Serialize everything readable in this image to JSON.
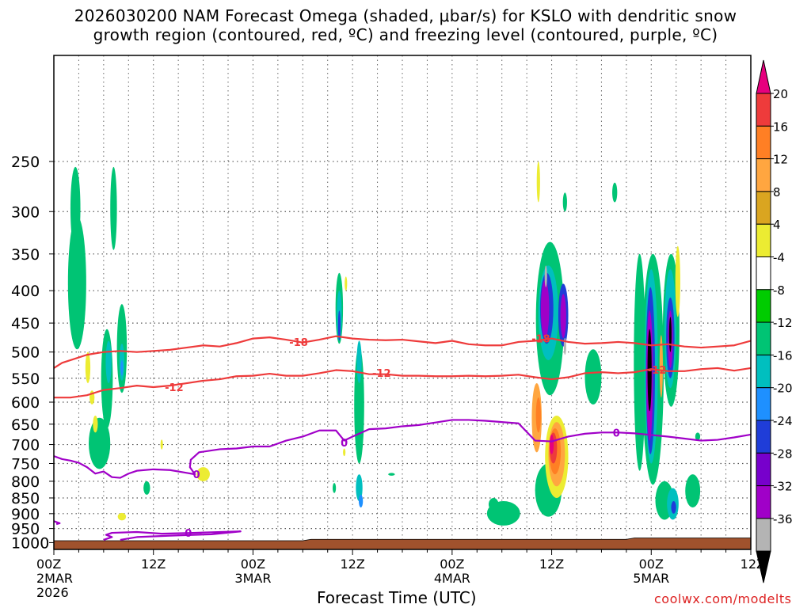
{
  "title_line1": "2026030200 NAM Forecast Omega (shaded, μbar/s) for KSLO with dendritic snow",
  "title_line2": "growth region (contoured, red, ºC) and freezing level (contoured, purple, ºC)",
  "x_axis_title": "Forecast Time (UTC)",
  "credit": "coolwx.com/modelts",
  "chart_data": {
    "type": "heatmap",
    "x_unit": "hours from 2026030200",
    "xlim": [
      0,
      84
    ],
    "y_unit": "hPa",
    "ylim": [
      1025,
      170
    ],
    "x_ticks": [
      {
        "hour": 0,
        "label": "00Z",
        "sub1": "2MAR",
        "sub2": "2026"
      },
      {
        "hour": 12,
        "label": "12Z",
        "sub1": "",
        "sub2": ""
      },
      {
        "hour": 24,
        "label": "00Z",
        "sub1": "3MAR",
        "sub2": ""
      },
      {
        "hour": 36,
        "label": "12Z",
        "sub1": "",
        "sub2": ""
      },
      {
        "hour": 48,
        "label": "00Z",
        "sub1": "4MAR",
        "sub2": ""
      },
      {
        "hour": 60,
        "label": "12Z",
        "sub1": "",
        "sub2": ""
      },
      {
        "hour": 72,
        "label": "00Z",
        "sub1": "5MAR",
        "sub2": ""
      },
      {
        "hour": 84,
        "label": "12Z",
        "sub1": "",
        "sub2": ""
      }
    ],
    "y_ticks": [
      250,
      300,
      350,
      400,
      450,
      500,
      550,
      600,
      650,
      700,
      750,
      800,
      850,
      900,
      950,
      1000
    ],
    "colorbar": {
      "labels": [
        "20",
        "16",
        "12",
        "8",
        "4",
        "-4",
        "-8",
        "-12",
        "-16",
        "-20",
        "-24",
        "-28",
        "-32",
        "-36"
      ],
      "colors": [
        "#e6007e",
        "#ee3b3b",
        "#ff7f24",
        "#ffa640",
        "#daa520",
        "#ecec32",
        "#ffffff",
        "#00cc00",
        "#00c474",
        "#00bfbf",
        "#1e90ff",
        "#1f3dd8",
        "#7700cc",
        "#a000c8",
        "#b4b4b4",
        "#000000"
      ]
    },
    "omega_shading": [
      {
        "x": 2.8,
        "p": 400,
        "w": 1.1,
        "h": 190,
        "v": -8
      },
      {
        "x": 2.6,
        "p": 300,
        "w": 0.6,
        "h": 90,
        "v": -8
      },
      {
        "x": 5.5,
        "p": 700,
        "w": 1.3,
        "h": 130,
        "v": -8
      },
      {
        "x": 6.4,
        "p": 560,
        "w": 0.7,
        "h": 200,
        "v": -8
      },
      {
        "x": 6.6,
        "p": 520,
        "w": 0.35,
        "h": 80,
        "v": -12
      },
      {
        "x": 7.2,
        "p": 300,
        "w": 0.4,
        "h": 90,
        "v": -8
      },
      {
        "x": 8.2,
        "p": 500,
        "w": 0.6,
        "h": 160,
        "v": -8
      },
      {
        "x": 8.2,
        "p": 520,
        "w": 0.3,
        "h": 70,
        "v": -12
      },
      {
        "x": 8.2,
        "p": 530,
        "w": 0.15,
        "h": 30,
        "v": -16
      },
      {
        "x": 4.1,
        "p": 530,
        "w": 0.3,
        "h": 60,
        "v": 4
      },
      {
        "x": 4.6,
        "p": 590,
        "w": 0.3,
        "h": 30,
        "v": 4
      },
      {
        "x": 5.0,
        "p": 650,
        "w": 0.3,
        "h": 40,
        "v": 4
      },
      {
        "x": 8.2,
        "p": 910,
        "w": 0.5,
        "h": 25,
        "v": 4
      },
      {
        "x": 11.2,
        "p": 820,
        "w": 0.4,
        "h": 40,
        "v": -8
      },
      {
        "x": 18.0,
        "p": 780,
        "w": 0.8,
        "h": 40,
        "v": 4
      },
      {
        "x": 13.0,
        "p": 700,
        "w": 0.15,
        "h": 25,
        "v": 4
      },
      {
        "x": 34.4,
        "p": 430,
        "w": 0.45,
        "h": 110,
        "v": -8
      },
      {
        "x": 34.4,
        "p": 440,
        "w": 0.3,
        "h": 80,
        "v": -12
      },
      {
        "x": 34.4,
        "p": 455,
        "w": 0.15,
        "h": 50,
        "v": -20
      },
      {
        "x": 36.8,
        "p": 620,
        "w": 0.6,
        "h": 260,
        "v": -8
      },
      {
        "x": 36.8,
        "p": 520,
        "w": 0.3,
        "h": 80,
        "v": -12
      },
      {
        "x": 36.8,
        "p": 820,
        "w": 0.4,
        "h": 80,
        "v": -12
      },
      {
        "x": 37.0,
        "p": 860,
        "w": 0.25,
        "h": 40,
        "v": -16
      },
      {
        "x": 33.8,
        "p": 820,
        "w": 0.2,
        "h": 30,
        "v": -8
      },
      {
        "x": 35.2,
        "p": 390,
        "w": 0.15,
        "h": 20,
        "v": 4
      },
      {
        "x": 35.0,
        "p": 720,
        "w": 0.15,
        "h": 20,
        "v": 4
      },
      {
        "x": 40.7,
        "p": 780,
        "w": 0.4,
        "h": 8,
        "v": -8
      },
      {
        "x": 54.2,
        "p": 900,
        "w": 2.0,
        "h": 80,
        "v": -8
      },
      {
        "x": 53.0,
        "p": 870,
        "w": 0.6,
        "h": 40,
        "v": -8
      },
      {
        "x": 59.8,
        "p": 460,
        "w": 1.7,
        "h": 250,
        "v": -8
      },
      {
        "x": 59.6,
        "p": 440,
        "w": 1.2,
        "h": 150,
        "v": -12
      },
      {
        "x": 59.4,
        "p": 430,
        "w": 0.8,
        "h": 110,
        "v": -20
      },
      {
        "x": 59.2,
        "p": 430,
        "w": 0.5,
        "h": 90,
        "v": -28
      },
      {
        "x": 58.4,
        "p": 270,
        "w": 0.2,
        "h": 40,
        "v": 4
      },
      {
        "x": 61.4,
        "p": 440,
        "w": 0.6,
        "h": 100,
        "v": -20
      },
      {
        "x": 61.4,
        "p": 440,
        "w": 0.35,
        "h": 70,
        "v": -28
      },
      {
        "x": 59.3,
        "p": 380,
        "w": 0.15,
        "h": 30,
        "v": -32
      },
      {
        "x": 61.6,
        "p": 490,
        "w": 0.15,
        "h": 30,
        "v": -32
      },
      {
        "x": 59.6,
        "p": 830,
        "w": 1.6,
        "h": 160,
        "v": -8
      },
      {
        "x": 58.2,
        "p": 640,
        "w": 0.6,
        "h": 160,
        "v": 8
      },
      {
        "x": 58.4,
        "p": 630,
        "w": 0.3,
        "h": 80,
        "v": 12
      },
      {
        "x": 60.6,
        "p": 740,
        "w": 1.4,
        "h": 220,
        "v": 4
      },
      {
        "x": 60.6,
        "p": 730,
        "w": 1.0,
        "h": 170,
        "v": 8
      },
      {
        "x": 60.4,
        "p": 720,
        "w": 0.7,
        "h": 120,
        "v": 12
      },
      {
        "x": 60.2,
        "p": 710,
        "w": 0.45,
        "h": 80,
        "v": 16
      },
      {
        "x": 60.0,
        "p": 700,
        "w": 0.25,
        "h": 50,
        "v": 20
      },
      {
        "x": 61.6,
        "p": 290,
        "w": 0.25,
        "h": 20,
        "v": -8
      },
      {
        "x": 65.0,
        "p": 550,
        "w": 1.0,
        "h": 110,
        "v": -8
      },
      {
        "x": 70.6,
        "p": 560,
        "w": 0.7,
        "h": 420,
        "v": -8
      },
      {
        "x": 72.2,
        "p": 580,
        "w": 1.3,
        "h": 460,
        "v": -8
      },
      {
        "x": 72.0,
        "p": 560,
        "w": 0.8,
        "h": 380,
        "v": -12
      },
      {
        "x": 71.9,
        "p": 560,
        "w": 0.55,
        "h": 330,
        "v": -20
      },
      {
        "x": 71.8,
        "p": 560,
        "w": 0.4,
        "h": 260,
        "v": -28
      },
      {
        "x": 71.8,
        "p": 540,
        "w": 0.25,
        "h": 160,
        "v": -36
      },
      {
        "x": 73.2,
        "p": 530,
        "w": 0.2,
        "h": 120,
        "v": 8
      },
      {
        "x": 74.4,
        "p": 480,
        "w": 1.0,
        "h": 260,
        "v": -8
      },
      {
        "x": 74.3,
        "p": 470,
        "w": 0.7,
        "h": 200,
        "v": -12
      },
      {
        "x": 74.3,
        "p": 480,
        "w": 0.5,
        "h": 140,
        "v": -20
      },
      {
        "x": 74.3,
        "p": 480,
        "w": 0.3,
        "h": 100,
        "v": -28
      },
      {
        "x": 74.3,
        "p": 470,
        "w": 0.15,
        "h": 60,
        "v": -36
      },
      {
        "x": 75.2,
        "p": 390,
        "w": 0.3,
        "h": 100,
        "v": 4
      },
      {
        "x": 73.6,
        "p": 860,
        "w": 1.1,
        "h": 120,
        "v": -8
      },
      {
        "x": 74.6,
        "p": 870,
        "w": 0.7,
        "h": 100,
        "v": -12
      },
      {
        "x": 74.7,
        "p": 880,
        "w": 0.3,
        "h": 40,
        "v": -20
      },
      {
        "x": 77.0,
        "p": 830,
        "w": 0.9,
        "h": 100,
        "v": -8
      },
      {
        "x": 67.6,
        "p": 280,
        "w": 0.3,
        "h": 20,
        "v": -8
      },
      {
        "x": 77.6,
        "p": 680,
        "w": 0.3,
        "h": 20,
        "v": -8
      }
    ],
    "contours": [
      {
        "label": "-18",
        "color": "#ee3b3b",
        "label_at": [
          {
            "x": 29.5,
            "p": 482
          },
          {
            "x": 58.7,
            "p": 476
          }
        ],
        "points": [
          [
            0,
            530
          ],
          [
            1,
            520
          ],
          [
            2,
            515
          ],
          [
            4,
            505
          ],
          [
            6,
            500
          ],
          [
            8,
            498
          ],
          [
            10,
            500
          ],
          [
            12,
            498
          ],
          [
            14,
            496
          ],
          [
            16,
            492
          ],
          [
            18,
            488
          ],
          [
            20,
            490
          ],
          [
            22,
            484
          ],
          [
            24,
            476
          ],
          [
            26,
            474
          ],
          [
            28,
            478
          ],
          [
            30,
            483
          ],
          [
            32,
            478
          ],
          [
            34,
            472
          ],
          [
            36,
            476
          ],
          [
            38,
            478
          ],
          [
            40,
            479
          ],
          [
            42,
            478
          ],
          [
            44,
            481
          ],
          [
            46,
            484
          ],
          [
            48,
            480
          ],
          [
            50,
            486
          ],
          [
            52,
            488
          ],
          [
            54,
            488
          ],
          [
            56,
            482
          ],
          [
            58,
            480
          ],
          [
            60,
            476
          ],
          [
            62,
            482
          ],
          [
            64,
            485
          ],
          [
            66,
            484
          ],
          [
            68,
            482
          ],
          [
            70,
            484
          ],
          [
            72,
            488
          ],
          [
            74,
            486
          ],
          [
            76,
            490
          ],
          [
            78,
            492
          ],
          [
            80,
            490
          ],
          [
            82,
            488
          ],
          [
            84,
            480
          ]
        ]
      },
      {
        "label": "-12",
        "color": "#ee3b3b",
        "label_at": [
          {
            "x": 14.5,
            "p": 568
          },
          {
            "x": 39.5,
            "p": 539
          },
          {
            "x": 72.7,
            "p": 533
          }
        ],
        "points": [
          [
            0,
            590
          ],
          [
            2,
            590
          ],
          [
            4,
            585
          ],
          [
            6,
            574
          ],
          [
            8,
            570
          ],
          [
            10,
            565
          ],
          [
            12,
            568
          ],
          [
            14,
            565
          ],
          [
            16,
            560
          ],
          [
            18,
            555
          ],
          [
            20,
            552
          ],
          [
            22,
            546
          ],
          [
            24,
            545
          ],
          [
            26,
            541
          ],
          [
            28,
            545
          ],
          [
            30,
            545
          ],
          [
            32,
            540
          ],
          [
            34,
            534
          ],
          [
            36,
            536
          ],
          [
            38,
            542
          ],
          [
            40,
            542
          ],
          [
            42,
            545
          ],
          [
            44,
            545
          ],
          [
            46,
            546
          ],
          [
            48,
            546
          ],
          [
            50,
            545
          ],
          [
            52,
            546
          ],
          [
            54,
            545
          ],
          [
            56,
            543
          ],
          [
            58,
            548
          ],
          [
            60,
            552
          ],
          [
            62,
            548
          ],
          [
            64,
            540
          ],
          [
            66,
            538
          ],
          [
            68,
            540
          ],
          [
            70,
            538
          ],
          [
            72,
            532
          ],
          [
            74,
            536
          ],
          [
            76,
            536
          ],
          [
            78,
            532
          ],
          [
            80,
            530
          ],
          [
            82,
            535
          ],
          [
            84,
            530
          ]
        ]
      },
      {
        "label": "0",
        "color": "#a000c8",
        "label_at": [
          {
            "x": 17.2,
            "p": 780
          },
          {
            "x": 35.0,
            "p": 695
          },
          {
            "x": 67.8,
            "p": 670
          }
        ],
        "points": [
          [
            0,
            730
          ],
          [
            1,
            738
          ],
          [
            2,
            742
          ],
          [
            3,
            748
          ],
          [
            4,
            760
          ],
          [
            5,
            778
          ],
          [
            6,
            772
          ],
          [
            7,
            788
          ],
          [
            8,
            790
          ],
          [
            9,
            778
          ],
          [
            10,
            770
          ],
          [
            12,
            766
          ],
          [
            14,
            768
          ],
          [
            16,
            776
          ],
          [
            17,
            780
          ],
          [
            16.4,
            760
          ],
          [
            16.5,
            740
          ],
          [
            17.5,
            720
          ],
          [
            20,
            712
          ],
          [
            22,
            710
          ],
          [
            24,
            705
          ],
          [
            26,
            705
          ],
          [
            28,
            690
          ],
          [
            30,
            680
          ],
          [
            32,
            665
          ],
          [
            34,
            665
          ],
          [
            35,
            690
          ],
          [
            36,
            680
          ],
          [
            38,
            662
          ],
          [
            40,
            660
          ],
          [
            42,
            655
          ],
          [
            44,
            652
          ],
          [
            46,
            646
          ],
          [
            48,
            640
          ],
          [
            50,
            640
          ],
          [
            52,
            642
          ],
          [
            54,
            645
          ],
          [
            56,
            648
          ],
          [
            58,
            690
          ],
          [
            60,
            692
          ],
          [
            62,
            680
          ],
          [
            64,
            673
          ],
          [
            66,
            670
          ],
          [
            68,
            670
          ],
          [
            70,
            672
          ],
          [
            72,
            676
          ],
          [
            74,
            680
          ],
          [
            76,
            685
          ],
          [
            78,
            690
          ],
          [
            80,
            688
          ],
          [
            82,
            682
          ],
          [
            84,
            675
          ]
        ]
      },
      {
        "label": "0",
        "color": "#a000c8",
        "label_at": [
          {
            "x": 16.2,
            "p": 965
          }
        ],
        "points": [
          [
            6,
            990
          ],
          [
            7,
            980
          ],
          [
            6.3,
            972
          ],
          [
            7,
            965
          ],
          [
            10,
            962
          ],
          [
            13,
            968
          ],
          [
            16,
            966
          ],
          [
            19,
            963
          ],
          [
            22.5,
            960
          ],
          [
            19,
            970
          ],
          [
            14,
            975
          ],
          [
            10,
            980
          ],
          [
            8,
            990
          ]
        ]
      },
      {
        "label": "",
        "color": "#a000c8",
        "label_at": [],
        "points": [
          [
            0,
            925
          ],
          [
            0.7,
            932
          ],
          [
            0.3,
            935
          ]
        ]
      }
    ],
    "terrain": {
      "color": "#a0522d",
      "surface_pressure": [
        [
          0,
          993
        ],
        [
          30,
          993
        ],
        [
          31,
          988
        ],
        [
          69,
          988
        ],
        [
          70,
          983
        ],
        [
          84,
          983
        ]
      ]
    }
  }
}
